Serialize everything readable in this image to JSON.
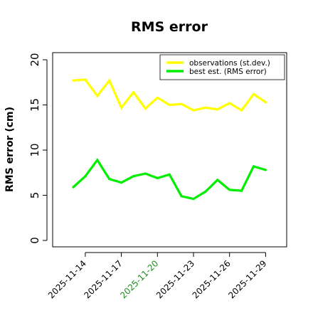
{
  "chart_data": {
    "type": "line",
    "title": "RMS error",
    "xlabel": "",
    "ylabel": "RMS error (cm)",
    "ylim": [
      0,
      20
    ],
    "yticks": [
      0,
      5,
      10,
      15,
      20
    ],
    "x": [
      "2025-11-13",
      "2025-11-14",
      "2025-11-15",
      "2025-11-16",
      "2025-11-17",
      "2025-11-18",
      "2025-11-19",
      "2025-11-20",
      "2025-11-21",
      "2025-11-22",
      "2025-11-23",
      "2025-11-24",
      "2025-11-25",
      "2025-11-26",
      "2025-11-27",
      "2025-11-28",
      "2025-11-29"
    ],
    "xticks": [
      {
        "label": "2025-11-14",
        "color": "#000000"
      },
      {
        "label": "2025-11-17",
        "color": "#000000"
      },
      {
        "label": "2025-11-20",
        "color": "#228B22"
      },
      {
        "label": "2025-11-23",
        "color": "#000000"
      },
      {
        "label": "2025-11-26",
        "color": "#000000"
      },
      {
        "label": "2025-11-29",
        "color": "#000000"
      }
    ],
    "grid": false,
    "legend_position": "top-right",
    "series": [
      {
        "name": "observations (st.dev.)",
        "color": "#FFFF00",
        "values": [
          17.7,
          17.8,
          16.0,
          17.7,
          14.7,
          16.4,
          14.6,
          15.8,
          15.0,
          15.1,
          14.4,
          14.7,
          14.5,
          15.2,
          14.4,
          16.2,
          15.3
        ]
      },
      {
        "name": "best est. (RMS error)",
        "color": "#00EE00",
        "values": [
          5.9,
          7.1,
          8.9,
          6.8,
          6.4,
          7.1,
          7.4,
          6.9,
          7.3,
          4.9,
          4.6,
          5.4,
          6.7,
          5.6,
          5.5,
          8.2,
          7.8
        ]
      }
    ]
  }
}
